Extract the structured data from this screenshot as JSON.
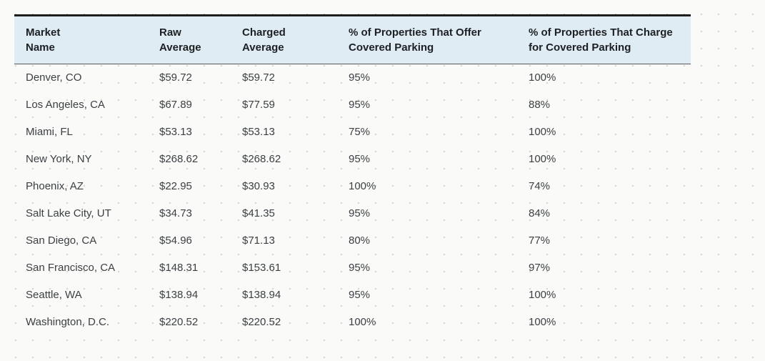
{
  "colors": {
    "page_background": "#fafaf9",
    "dot_grid": "#d9d6cf",
    "table_top_border": "#1d1d1d",
    "header_background": "#dfecf3",
    "header_rule": "#54585b",
    "header_text": "#1d2023",
    "body_text": "#3c4043"
  },
  "table": {
    "columns": [
      {
        "id": "market",
        "label": "Market\nName"
      },
      {
        "id": "raw_avg",
        "label": "Raw\nAverage"
      },
      {
        "id": "charged_avg",
        "label": "Charged\nAverage"
      },
      {
        "id": "offer_pct",
        "label": "% of Properties That Offer\nCovered Parking"
      },
      {
        "id": "charge_pct",
        "label": "% of Properties That Charge\nfor Covered Parking"
      }
    ],
    "rows": [
      {
        "market": "Denver, CO",
        "raw_avg": "$59.72",
        "charged_avg": "$59.72",
        "offer_pct": "95%",
        "charge_pct": "100%"
      },
      {
        "market": "Los Angeles, CA",
        "raw_avg": "$67.89",
        "charged_avg": "$77.59",
        "offer_pct": "95%",
        "charge_pct": "88%"
      },
      {
        "market": "Miami, FL",
        "raw_avg": "$53.13",
        "charged_avg": "$53.13",
        "offer_pct": "75%",
        "charge_pct": "100%"
      },
      {
        "market": "New York, NY",
        "raw_avg": "$268.62",
        "charged_avg": "$268.62",
        "offer_pct": "95%",
        "charge_pct": "100%"
      },
      {
        "market": "Phoenix, AZ",
        "raw_avg": "$22.95",
        "charged_avg": "$30.93",
        "offer_pct": "100%",
        "charge_pct": "74%"
      },
      {
        "market": "Salt Lake City, UT",
        "raw_avg": "$34.73",
        "charged_avg": "$41.35",
        "offer_pct": "95%",
        "charge_pct": "84%"
      },
      {
        "market": "San Diego, CA",
        "raw_avg": "$54.96",
        "charged_avg": "$71.13",
        "offer_pct": "80%",
        "charge_pct": "77%"
      },
      {
        "market": "San Francisco, CA",
        "raw_avg": "$148.31",
        "charged_avg": "$153.61",
        "offer_pct": "95%",
        "charge_pct": "97%"
      },
      {
        "market": "Seattle, WA",
        "raw_avg": "$138.94",
        "charged_avg": "$138.94",
        "offer_pct": "95%",
        "charge_pct": "100%"
      },
      {
        "market": "Washington, D.C.",
        "raw_avg": "$220.52",
        "charged_avg": "$220.52",
        "offer_pct": "100%",
        "charge_pct": "100%"
      }
    ]
  },
  "chart_data": {
    "type": "table",
    "title": "",
    "columns": [
      "Market Name",
      "Raw Average",
      "Charged Average",
      "% of Properties That Offer Covered Parking",
      "% of Properties That Charge for Covered Parking"
    ],
    "rows": [
      [
        "Denver, CO",
        "$59.72",
        "$59.72",
        "95%",
        "100%"
      ],
      [
        "Los Angeles, CA",
        "$67.89",
        "$77.59",
        "95%",
        "88%"
      ],
      [
        "Miami, FL",
        "$53.13",
        "$53.13",
        "75%",
        "100%"
      ],
      [
        "New York, NY",
        "$268.62",
        "$268.62",
        "95%",
        "100%"
      ],
      [
        "Phoenix, AZ",
        "$22.95",
        "$30.93",
        "100%",
        "74%"
      ],
      [
        "Salt Lake City, UT",
        "$34.73",
        "$41.35",
        "95%",
        "84%"
      ],
      [
        "San Diego, CA",
        "$54.96",
        "$71.13",
        "80%",
        "77%"
      ],
      [
        "San Francisco, CA",
        "$148.31",
        "$153.61",
        "95%",
        "97%"
      ],
      [
        "Seattle, WA",
        "$138.94",
        "$138.94",
        "95%",
        "100%"
      ],
      [
        "Washington, D.C.",
        "$220.52",
        "$220.52",
        "100%",
        "100%"
      ]
    ]
  }
}
